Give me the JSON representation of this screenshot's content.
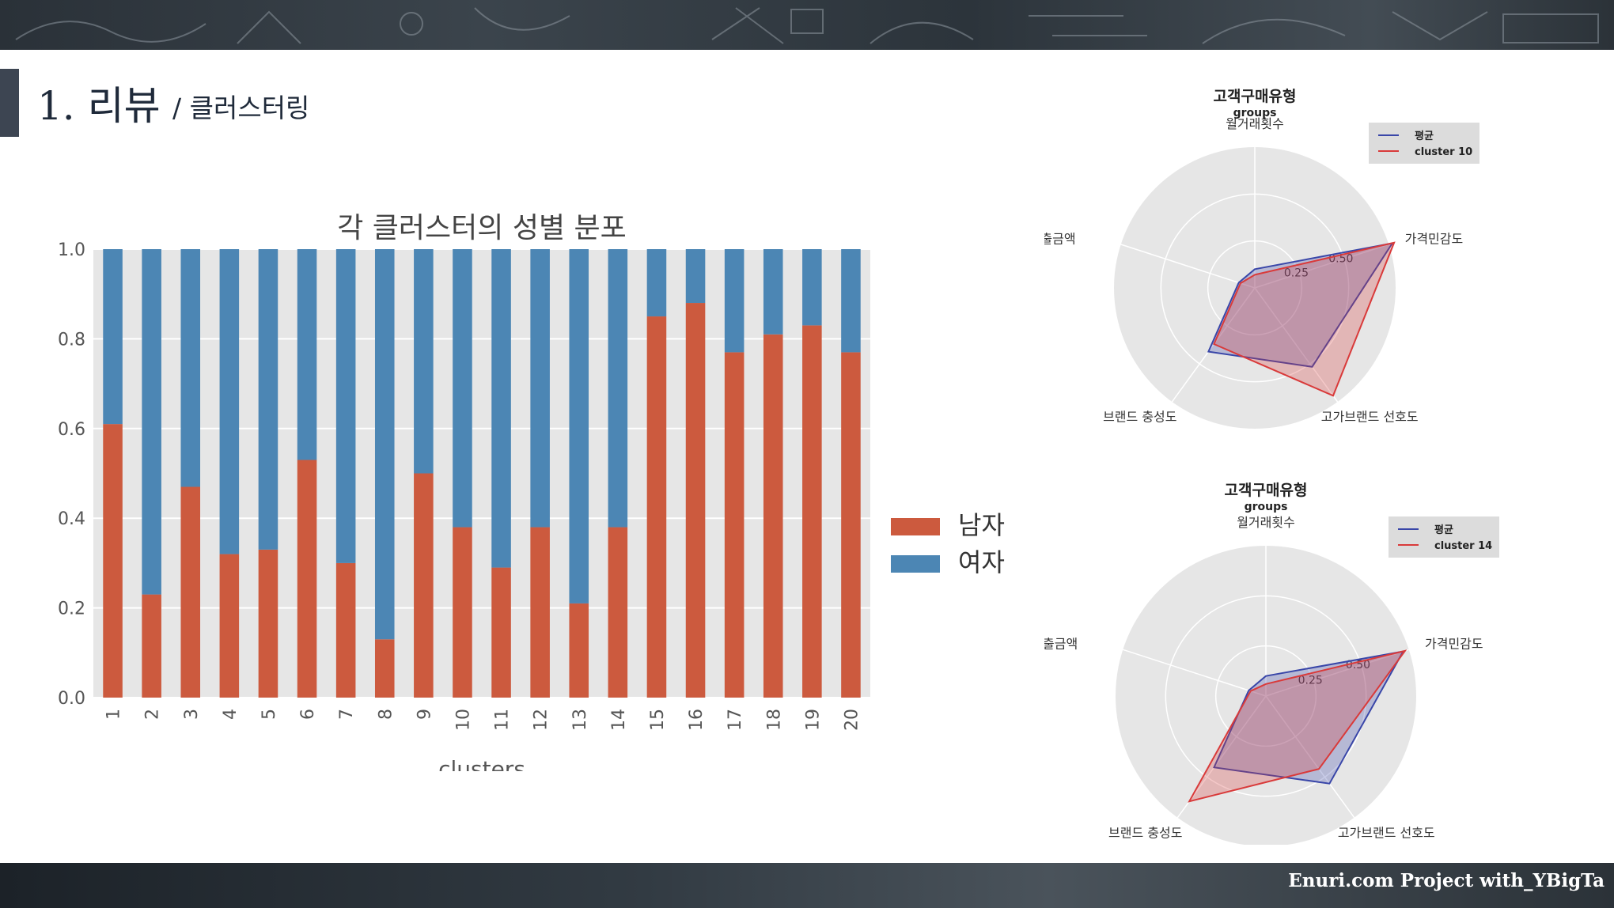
{
  "header": {
    "title": "1. 리뷰",
    "subtitle": "/ 클러스터링"
  },
  "footer": {
    "text": "Enuri.com Project with_YBigTa"
  },
  "colors": {
    "male": "#cc5a3e",
    "female": "#4c86b4",
    "plot_bg": "#e6e6e6",
    "radar_mean": "#3946a8",
    "radar_cluster": "#d93a3a",
    "radar_fill": "#a06a9e"
  },
  "chart_data": [
    {
      "type": "bar",
      "stacked": true,
      "title": "각 클러스터의 성별 분포",
      "xlabel": "clusters",
      "ylabel": "",
      "ylim": [
        0,
        1
      ],
      "yticks": [
        "0.0",
        "0.2",
        "0.4",
        "0.6",
        "0.8",
        "1.0"
      ],
      "categories": [
        "1",
        "2",
        "3",
        "4",
        "5",
        "6",
        "7",
        "8",
        "9",
        "10",
        "11",
        "12",
        "13",
        "14",
        "15",
        "16",
        "17",
        "18",
        "19",
        "20"
      ],
      "series": [
        {
          "name": "남자",
          "values": [
            0.61,
            0.23,
            0.47,
            0.32,
            0.33,
            0.53,
            0.3,
            0.13,
            0.5,
            0.38,
            0.29,
            0.38,
            0.21,
            0.38,
            0.85,
            0.88,
            0.77,
            0.81,
            0.83,
            0.77
          ]
        },
        {
          "name": "여자",
          "values": [
            0.39,
            0.77,
            0.53,
            0.68,
            0.67,
            0.47,
            0.7,
            0.87,
            0.5,
            0.62,
            0.71,
            0.62,
            0.79,
            0.62,
            0.15,
            0.12,
            0.23,
            0.19,
            0.17,
            0.23
          ]
        }
      ],
      "legend": "right"
    },
    {
      "type": "radar",
      "title": "고객구매유형",
      "subtitle": "groups",
      "axes": [
        "월거래횟수",
        "가격민감도",
        "고가브랜드 선호도",
        "브랜드 충성도",
        "월지출금액"
      ],
      "rticks": [
        "0.25",
        "0.50"
      ],
      "rmax": 0.75,
      "series": [
        {
          "name": "평균",
          "values": [
            0.1,
            0.77,
            0.52,
            0.42,
            0.09
          ]
        },
        {
          "name": "cluster 10",
          "values": [
            0.07,
            0.78,
            0.71,
            0.37,
            0.08
          ]
        }
      ],
      "legend": "top-right"
    },
    {
      "type": "radar",
      "title": "고객구매유형",
      "subtitle": "groups",
      "axes": [
        "월거래횟수",
        "가격민감도",
        "고가브랜드 선호도",
        "브랜드 충성도",
        "월지출금액"
      ],
      "rticks": [
        "0.25",
        "0.50"
      ],
      "rmax": 0.75,
      "series": [
        {
          "name": "평균",
          "values": [
            0.1,
            0.72,
            0.54,
            0.44,
            0.09
          ]
        },
        {
          "name": "cluster 14",
          "values": [
            0.06,
            0.73,
            0.45,
            0.65,
            0.08
          ]
        }
      ],
      "legend": "top-right"
    }
  ]
}
